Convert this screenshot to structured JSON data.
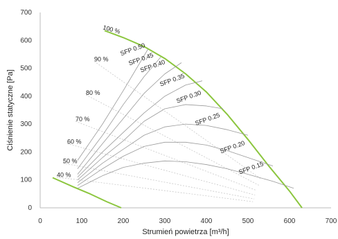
{
  "chart_data": {
    "type": "line",
    "xlabel": "Strumień powietrza [m³/h]",
    "ylabel": "Ciśnienie statyczne [Pa]",
    "xlim": [
      0,
      700
    ],
    "ylim": [
      0,
      700
    ],
    "xticks": [
      "0",
      "100",
      "200",
      "300",
      "400",
      "500",
      "600",
      "700"
    ],
    "yticks": [
      "0",
      "100",
      "200",
      "300",
      "400",
      "500",
      "600",
      "700"
    ],
    "grid": false,
    "colors": {
      "max_curve": "#8cc63f",
      "min_curve": "#8cc63f",
      "speed_lines": "#d4e6a8",
      "sfp_curves": "#9a9a9a",
      "control_lines": "#c8c8c8"
    },
    "series": [
      {
        "label": "100 %",
        "role": "max-curve",
        "x": [
          155,
          200,
          250,
          300,
          350,
          400,
          450,
          500,
          550,
          600,
          630
        ],
        "y": [
          635,
          610,
          578,
          535,
          480,
          415,
          335,
          245,
          150,
          60,
          0
        ]
      },
      {
        "role": "min-curve",
        "x": [
          30,
          80,
          120,
          160,
          195
        ],
        "y": [
          108,
          75,
          50,
          22,
          0
        ]
      },
      {
        "label": "40 %",
        "label_x": 40,
        "label_y": 110
      },
      {
        "label": "50 %",
        "label_x": 55,
        "label_y": 160
      },
      {
        "label": "60 %",
        "label_x": 65,
        "label_y": 230
      },
      {
        "label": "70 %",
        "label_x": 85,
        "label_y": 310
      },
      {
        "label": "80 %",
        "label_x": 110,
        "label_y": 405
      },
      {
        "label": "90 %",
        "label_x": 130,
        "label_y": 525
      },
      {
        "label": "SFP 0.50",
        "x": [
          90,
          150,
          200,
          240,
          260
        ],
        "y": [
          170,
          300,
          420,
          520,
          570
        ],
        "label_x": 195,
        "label_y": 545
      },
      {
        "label": "SFP 0.45",
        "x": [
          90,
          150,
          200,
          250,
          290
        ],
        "y": [
          140,
          260,
          370,
          470,
          540
        ],
        "label_x": 215,
        "label_y": 510
      },
      {
        "label": "SFP 0.40",
        "x": [
          90,
          150,
          200,
          250,
          300,
          340
        ],
        "y": [
          120,
          230,
          320,
          410,
          480,
          520
        ],
        "label_x": 243,
        "label_y": 485
      },
      {
        "label": "SFP 0.35",
        "x": [
          90,
          150,
          200,
          250,
          300,
          350,
          390
        ],
        "y": [
          110,
          200,
          270,
          340,
          400,
          440,
          455
        ],
        "label_x": 290,
        "label_y": 435
      },
      {
        "label": "SFP 0.30",
        "x": [
          90,
          150,
          200,
          250,
          300,
          350,
          400,
          440
        ],
        "y": [
          100,
          180,
          240,
          310,
          355,
          370,
          365,
          355
        ],
        "label_x": 330,
        "label_y": 375
      },
      {
        "label": "SFP 0.25",
        "x": [
          90,
          150,
          200,
          250,
          300,
          350,
          400,
          450,
          500
        ],
        "y": [
          90,
          160,
          210,
          260,
          290,
          300,
          295,
          280,
          260
        ],
        "label_x": 375,
        "label_y": 295
      },
      {
        "label": "SFP 0.20",
        "x": [
          90,
          150,
          200,
          250,
          300,
          350,
          400,
          450,
          500,
          560
        ],
        "y": [
          80,
          140,
          185,
          220,
          235,
          235,
          225,
          205,
          180,
          150
        ],
        "label_x": 435,
        "label_y": 195
      },
      {
        "label": "SFP 0.15",
        "x": [
          90,
          150,
          200,
          250,
          300,
          350,
          400,
          450,
          500,
          560,
          610
        ],
        "y": [
          70,
          115,
          145,
          160,
          168,
          165,
          155,
          140,
          120,
          95,
          70
        ],
        "label_x": 480,
        "label_y": 120
      }
    ]
  }
}
